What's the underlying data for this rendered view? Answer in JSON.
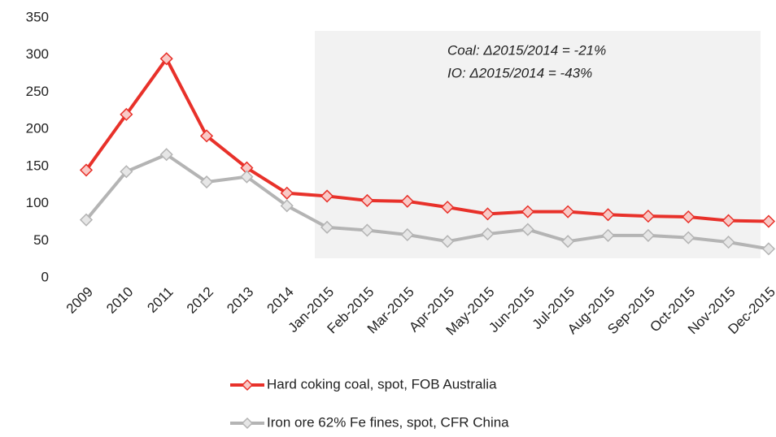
{
  "chart_data": {
    "type": "line",
    "categories": [
      "2009",
      "2010",
      "2011",
      "2012",
      "2013",
      "2014",
      "Jan-2015",
      "Feb-2015",
      "Mar-2015",
      "Apr-2015",
      "May-2015",
      "Jun-2015",
      "Jul-2015",
      "Aug-2015",
      "Sep-2015",
      "Oct-2015",
      "Nov-2015",
      "Dec-2015"
    ],
    "series": [
      {
        "name": "Hard coking coal, spot, FOB Australia",
        "color": "#e8312a",
        "marker_fill": "#f9c9c6",
        "values": [
          145,
          220,
          295,
          191,
          148,
          114,
          110,
          104,
          103,
          95,
          86,
          89,
          89,
          85,
          83,
          82,
          77,
          76
        ]
      },
      {
        "name": "Iron ore 62% Fe fines, spot, CFR China",
        "color": "#b4b4b4",
        "marker_fill": "#e6e6e6",
        "values": [
          78,
          143,
          166,
          129,
          136,
          97,
          68,
          64,
          58,
          49,
          59,
          65,
          49,
          57,
          57,
          54,
          48,
          39
        ]
      }
    ],
    "annotations": [
      "Coal: Δ2015/2014 = -21%",
      "IO: Δ2015/2014 = -43%"
    ],
    "ylim": [
      0,
      350
    ],
    "yticks": [
      0,
      50,
      100,
      150,
      200,
      250,
      300,
      350
    ],
    "grid": false
  }
}
